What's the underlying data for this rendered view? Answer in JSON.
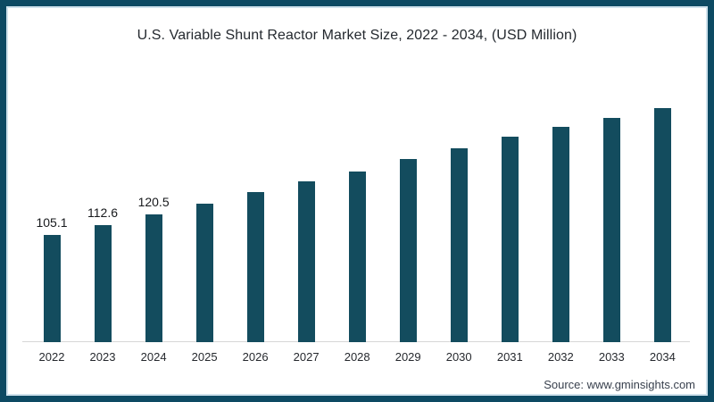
{
  "header": {
    "title": "U.S. Variable Shunt Reactor Market Size, 2022 - 2034, (USD Million)"
  },
  "footer": {
    "source": "Source: www.gminsights.com"
  },
  "colors": {
    "bar": "#134c5e",
    "frame_border": "#0d4a63",
    "frame_inner_line": "#cfe2ec",
    "axis_line": "#d6d6d6",
    "title_text": "#24292f",
    "tick_text": "#26292e",
    "value_label_text": "#17191c",
    "source_text": "#39414e"
  },
  "chart_data": {
    "type": "bar",
    "title": "U.S. Variable Shunt Reactor Market Size, 2022 - 2034, (USD Million)",
    "categories": [
      "2022",
      "2023",
      "2024",
      "2025",
      "2026",
      "2027",
      "2028",
      "2029",
      "2030",
      "2031",
      "2032",
      "2033",
      "2034"
    ],
    "values": [
      105.1,
      112.6,
      120.5,
      128.5,
      137.2,
      145.3,
      152.9,
      161.8,
      170.2,
      178.6,
      186.0,
      193.1,
      200.2
    ],
    "bar_labels": [
      "105.1",
      "112.6",
      "120.5",
      "",
      "",
      "",
      "",
      "",
      "",
      "",
      "",
      "",
      ""
    ],
    "xlabel": "",
    "ylabel": "",
    "ylim": [
      24.75,
      205
    ],
    "grid": false,
    "legend": false
  }
}
